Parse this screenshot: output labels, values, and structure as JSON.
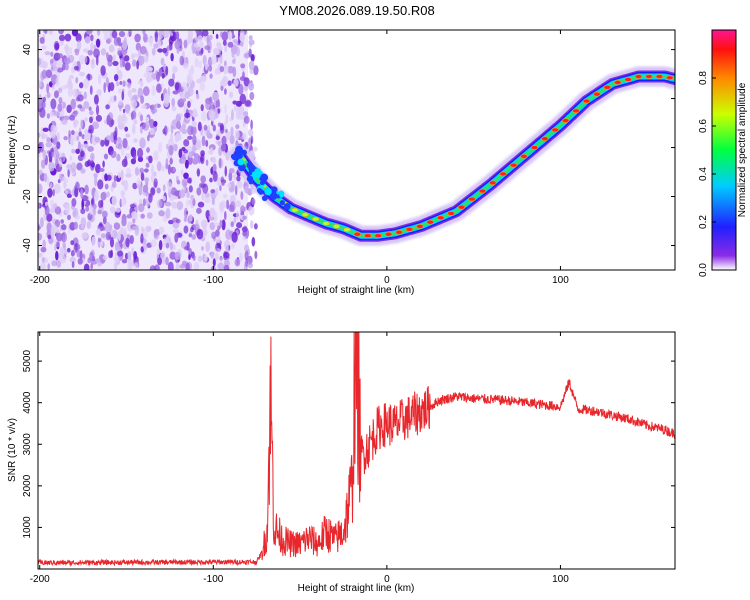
{
  "title": "YM08.2026.089.19.50.R08",
  "chart_data": [
    {
      "type": "heatmap",
      "name": "spectrogram",
      "xlabel": "Height of straight line (km)",
      "ylabel": "Frequency (Hz)",
      "xlim": [
        -201,
        166
      ],
      "ylim": [
        -50,
        48
      ],
      "xticks": [
        -200,
        -100,
        0,
        100
      ],
      "yticks": [
        -40,
        -20,
        0,
        20,
        40
      ],
      "noise_region_x": [
        -201,
        -80
      ],
      "ridge": {
        "x": [
          -85,
          -75,
          -65,
          -55,
          -45,
          -35,
          -25,
          -15,
          -5,
          5,
          20,
          40,
          60,
          80,
          100,
          115,
          130,
          145,
          160,
          166
        ],
        "freq": [
          -3,
          -13,
          -20,
          -25,
          -28,
          -31,
          -33,
          -36,
          -36,
          -35,
          -32,
          -26,
          -15,
          -3,
          9,
          19,
          26,
          29,
          29,
          28
        ]
      },
      "colorbar": {
        "label": "Normalized spectral amplitude",
        "range": [
          0,
          1
        ],
        "ticks": [
          "0.0",
          "0.2",
          "0.4",
          "0.6",
          "0.8"
        ]
      }
    },
    {
      "type": "line",
      "name": "snr",
      "xlabel": "Height of straight line (km)",
      "ylabel": "SNR (10 * v/v)",
      "xlim": [
        -201,
        166
      ],
      "ylim": [
        0,
        5700
      ],
      "xticks": [
        -200,
        -100,
        0,
        100
      ],
      "yticks": [
        1000,
        2000,
        3000,
        4000,
        5000
      ],
      "series_color": "#e8262b",
      "x": [
        -201,
        -75,
        -72,
        -69,
        -67,
        -65,
        -60,
        -55,
        -50,
        -45,
        -40,
        -35,
        -30,
        -25,
        -20,
        -18,
        -15,
        -10,
        -5,
        0,
        5,
        10,
        15,
        20,
        25,
        30,
        40,
        50,
        60,
        70,
        80,
        90,
        100,
        105,
        110,
        120,
        130,
        140,
        150,
        160,
        166
      ],
      "y": [
        150,
        170,
        400,
        900,
        4250,
        1000,
        700,
        600,
        600,
        750,
        600,
        900,
        700,
        900,
        2000,
        5700,
        2700,
        3000,
        3400,
        3500,
        3450,
        3600,
        3700,
        3800,
        3900,
        4050,
        4150,
        4100,
        4080,
        4050,
        4000,
        3950,
        3900,
        4500,
        3850,
        3800,
        3700,
        3600,
        3450,
        3350,
        3250
      ]
    }
  ]
}
